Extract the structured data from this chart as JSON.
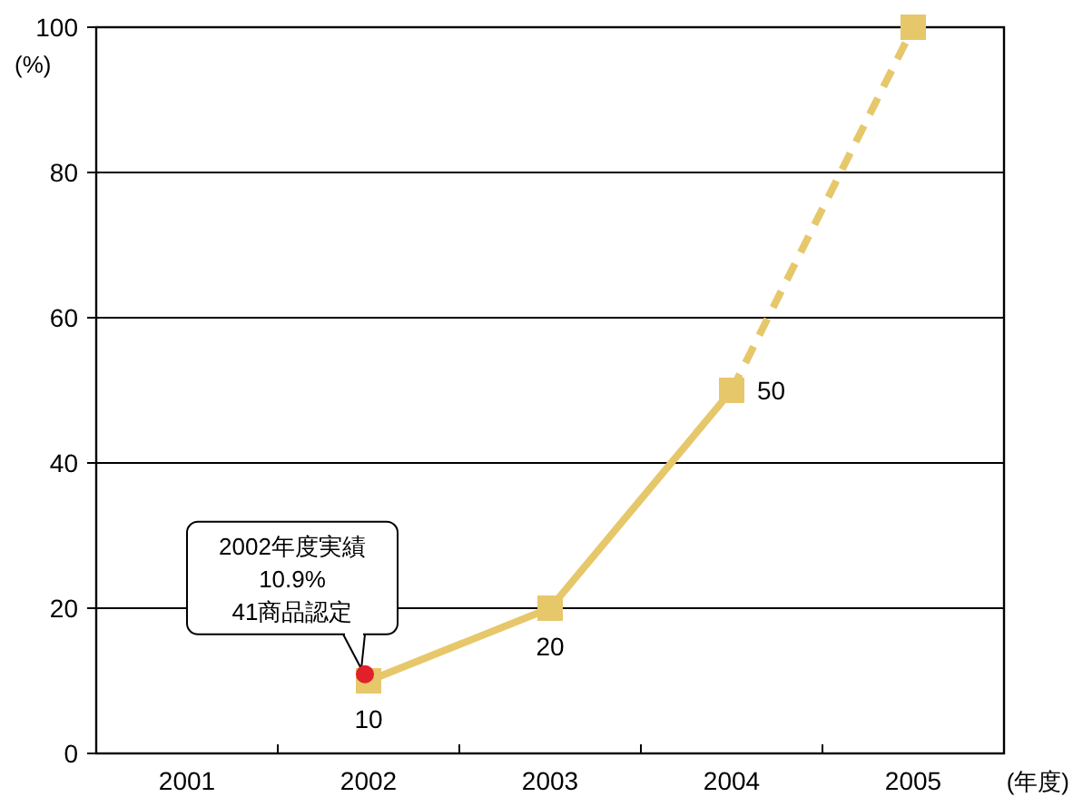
{
  "chart_data": {
    "type": "line",
    "ylabel": "(%)",
    "xlabel": "(年度)",
    "categories": [
      "2001",
      "2002",
      "2003",
      "2004",
      "2005"
    ],
    "series": [
      {
        "color": "#e6c76a",
        "values": [
          null,
          10,
          20,
          50,
          null
        ],
        "value_labels": [
          null,
          "10",
          "20",
          "50",
          null
        ],
        "line_style": "solid"
      },
      {
        "color": "#e6c76a",
        "values": [
          null,
          null,
          null,
          50,
          100
        ],
        "line_style": "dashed"
      }
    ],
    "annotations": [
      {
        "text": "2002年度実績\n10.9%\n41商品認定",
        "x": "2002",
        "y": 10.9
      }
    ],
    "ylim": [
      0,
      100
    ],
    "yticks": [
      0,
      20,
      40,
      60,
      80,
      100
    ],
    "grid": "y",
    "marker": "square"
  }
}
